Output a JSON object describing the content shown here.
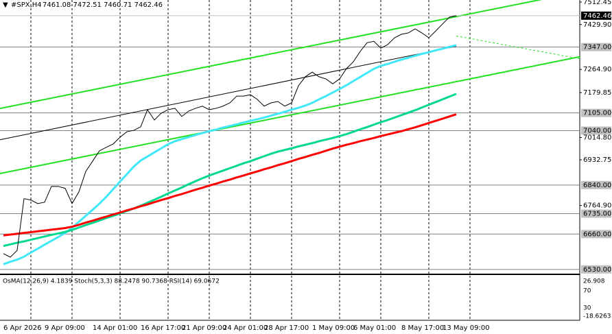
{
  "chart_data": {
    "type": "line",
    "title": "#SPX,H4",
    "subtitle": "7461.08 7472.51 7460.71 7462.46",
    "categories": [
      null,
      null,
      "6 Apr 2026",
      null,
      null,
      null,
      null,
      null,
      "9 Apr 09:00",
      null,
      null,
      null,
      null,
      null,
      null,
      "14 Apr 01:00",
      null,
      null,
      null,
      null,
      null,
      null,
      "16 Apr 17:00",
      null,
      null,
      null,
      null,
      null,
      "21 Apr 09:00",
      null,
      null,
      null,
      null,
      null,
      "24 Apr 01:00",
      null,
      null,
      null,
      null,
      null,
      "28 Apr 17:00",
      null,
      null,
      null,
      null,
      null,
      null,
      "1 May 09:00",
      null,
      null,
      null,
      null,
      null,
      "6 May 01:00",
      null,
      null,
      null,
      null,
      null,
      null,
      "8 May 17:00",
      null,
      null,
      null,
      null,
      null,
      "13 May 09:00"
    ],
    "series": [
      {
        "color": "#000000",
        "values": [
          6588,
          6575,
          6600,
          6790,
          6785,
          6772,
          6777,
          6835,
          6835,
          6828,
          6772,
          6815,
          6890,
          6928,
          6966,
          6979,
          6991,
          7016,
          7036,
          7041,
          7054,
          7117,
          7079,
          7104,
          7117,
          7122,
          7092,
          7112,
          7122,
          7130,
          7117,
          7122,
          7130,
          7142,
          7167,
          7167,
          7172,
          7155,
          7130,
          7142,
          7147,
          7130,
          7142,
          7205,
          7238,
          7255,
          7238,
          7230,
          7212,
          7230,
          7268,
          7293,
          7331,
          7363,
          7368,
          7343,
          7356,
          7381,
          7394,
          7399,
          7414,
          7399,
          7381,
          7406,
          7432,
          7457,
          7462.46
        ]
      },
      {
        "color": "#ff0000",
        "values": [
          6655,
          6658,
          6661,
          6664,
          6667,
          6670,
          6673,
          6676,
          6679,
          6682,
          6687,
          6694,
          6702,
          6709,
          6717,
          6724,
          6732,
          6739,
          6747,
          6754,
          6762,
          6769,
          6777,
          6785,
          6792,
          6800,
          6807,
          6815,
          6823,
          6830,
          6838,
          6845,
          6853,
          6860,
          6868,
          6875,
          6883,
          6890,
          6898,
          6905,
          6913,
          6920,
          6928,
          6936,
          6943,
          6951,
          6958,
          6966,
          6974,
          6981,
          6988,
          6994,
          7001,
          7007,
          7013,
          7020,
          7026,
          7032,
          7038,
          7045,
          7052,
          7060,
          7068,
          7076,
          7084,
          7092,
          7100
        ]
      },
      {
        "color": "#00d890",
        "values": [
          6616,
          6622,
          6628,
          6633,
          6639,
          6645,
          6651,
          6657,
          6662,
          6668,
          6675,
          6684,
          6693,
          6701,
          6710,
          6719,
          6727,
          6736,
          6745,
          6754,
          6764,
          6775,
          6786,
          6797,
          6809,
          6820,
          6831,
          6843,
          6854,
          6865,
          6875,
          6884,
          6893,
          6902,
          6911,
          6920,
          6928,
          6937,
          6946,
          6955,
          6963,
          6969,
          6975,
          6982,
          6988,
          6994,
          7001,
          7007,
          7013,
          7020,
          7027,
          7036,
          7045,
          7053,
          7062,
          7071,
          7079,
          7088,
          7097,
          7106,
          7115,
          7125,
          7135,
          7145,
          7155,
          7165,
          7175
        ]
      },
      {
        "color": "#40e8f8",
        "values": [
          6549,
          6558,
          6566,
          6577,
          6592,
          6606,
          6621,
          6635,
          6649,
          6664,
          6682,
          6705,
          6727,
          6749,
          6772,
          6797,
          6825,
          6853,
          6880,
          6908,
          6930,
          6945,
          6960,
          6975,
          6990,
          7001,
          7009,
          7016,
          7024,
          7031,
          7038,
          7044,
          7051,
          7057,
          7063,
          7070,
          7076,
          7082,
          7088,
          7095,
          7102,
          7109,
          7117,
          7124,
          7132,
          7142,
          7155,
          7167,
          7180,
          7193,
          7207,
          7222,
          7237,
          7252,
          7267,
          7278,
          7285,
          7293,
          7301,
          7308,
          7315,
          7322,
          7328,
          7335,
          7341,
          7348,
          7354
        ]
      }
    ],
    "trendlines": [
      {
        "color": "#22e022",
        "values": [
          7124,
          7459
        ]
      },
      {
        "color": "#22e022",
        "values": [
          6885,
          7220
        ]
      },
      {
        "color": "#000000",
        "values": [
          7009,
          7350
        ]
      }
    ],
    "ylim": [
      6517,
      7520
    ],
    "yticks": [
      7512.45,
      {
        "value": 7429.9,
        "label": "7429.90"
      },
      {
        "value": 7264.9,
        "label": "7264.90"
      },
      7179.85,
      {
        "value": 7014.8,
        "label": "7014.80"
      },
      6932.75,
      {
        "value": 6764.9,
        "label": "6764.90"
      }
    ],
    "levels": [
      {
        "value": 7347,
        "label": "7347.00"
      },
      {
        "value": 7105,
        "label": "7105.00"
      },
      {
        "value": 7040,
        "label": "7040.00"
      },
      {
        "value": 6840,
        "label": "6840.00"
      },
      {
        "value": 6735,
        "label": "6735.00"
      },
      {
        "value": 6660,
        "label": "6660.00"
      },
      {
        "value": 6530,
        "label": "6530.00"
      }
    ],
    "indicator_text": "OsMA(12,26,9) 4.1839 Stoch(5,3,3) 88.2478 90.7368 RSI(14) 69.0672",
    "indicator_scale": [
      "26.908",
      "70",
      "30",
      "-18.6263"
    ]
  }
}
